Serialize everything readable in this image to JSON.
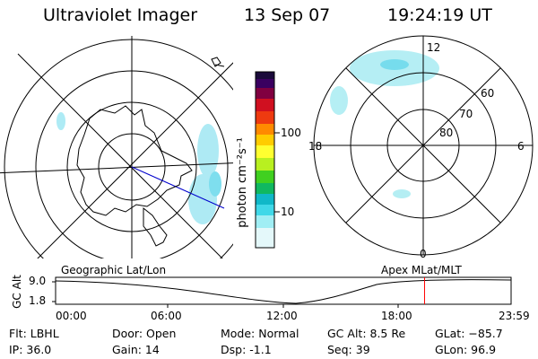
{
  "title": {
    "instrument": "Ultraviolet Imager",
    "date": "13 Sep 07",
    "time": "19:24:19 UT"
  },
  "colorbar": {
    "label": "photon cm⁻²s⁻¹",
    "ticks": [
      "100",
      "10"
    ]
  },
  "polar_plot": {
    "mlt_labels": {
      "top": "12",
      "left": "18",
      "right": "6",
      "bottom": "0"
    },
    "lat_labels": [
      "60",
      "70",
      "80"
    ]
  },
  "timeline": {
    "left_caption": "Geographic Lat/Lon",
    "right_caption": "Apex  MLat/MLT",
    "ylabel": "GC Alt",
    "yticks": [
      "9.0",
      "1.8"
    ],
    "xticks": [
      "00:00",
      "06:00",
      "12:00",
      "18:00",
      "23:59"
    ],
    "current_time_fraction": 0.81
  },
  "info": {
    "filter": "Flt: LBHL",
    "ip": "IP: 36.0",
    "door": "Door: Open",
    "gain": "Gain: 14",
    "mode": "Mode: Normal",
    "dsp": "Dsp:    -1.1",
    "gcalt": "GC Alt: 8.5 Re",
    "seq": "Seq: 39",
    "glat": "GLat: −85.7",
    "glon": "GLon:  96.9"
  },
  "colors": {
    "aurora": "#9ae6f2",
    "marker": "#ff0000",
    "meridian": "#0000cc"
  }
}
